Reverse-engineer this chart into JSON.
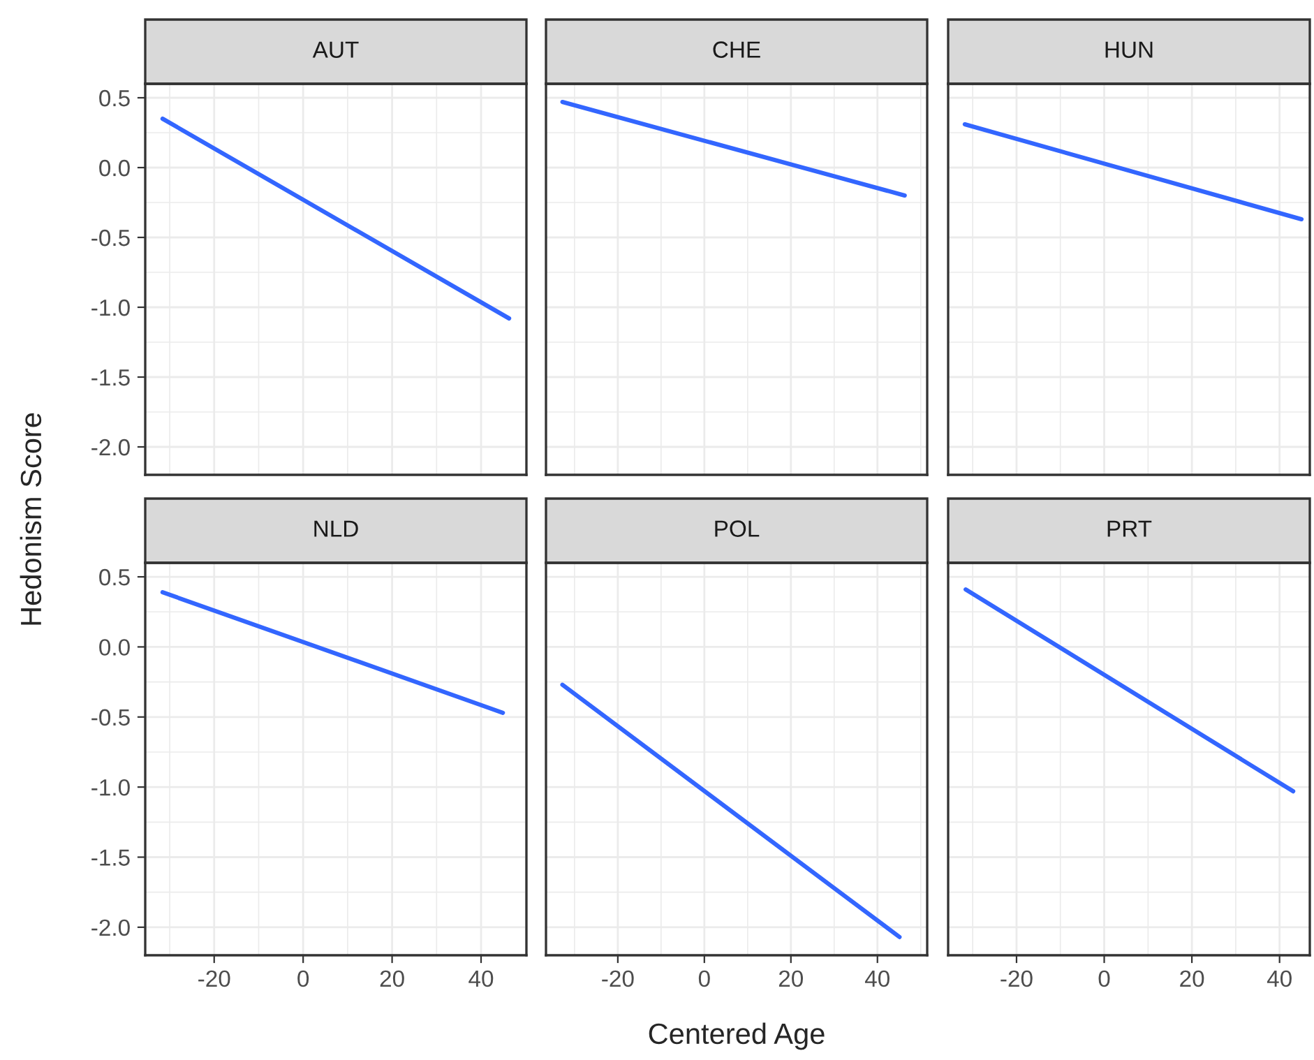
{
  "chart_data": [
    {
      "type": "line",
      "title": "AUT",
      "ylabel": "Hedonism Score",
      "xlim": [
        -35.5,
        50.2
      ],
      "ylim": [
        -2.2,
        0.6
      ],
      "xticks": [
        -20,
        0,
        20,
        40
      ],
      "yticks": [
        {
          "value": 0.5,
          "label": "0.5"
        },
        {
          "value": 0,
          "label": "0.0"
        },
        {
          "value": -0.5,
          "label": "-0.5"
        },
        {
          "value": -1,
          "label": "-1.0"
        },
        {
          "value": -1.5,
          "label": "-1.5"
        },
        {
          "value": -2,
          "label": "-2.0"
        }
      ],
      "grid": true,
      "tick_labels": "y",
      "series": [
        {
          "color": "#3366ff",
          "x": [
            -31.6,
            46.3
          ],
          "values": [
            0.35,
            -1.08
          ]
        }
      ]
    },
    {
      "type": "line",
      "title": "CHE",
      "xlim": [
        -36.6,
        51.5
      ],
      "ylim": [
        -2.2,
        0.6
      ],
      "xticks": [
        -20,
        0,
        20,
        40
      ],
      "yticks": [
        0.5,
        0,
        -0.5,
        -1,
        -1.5,
        -2
      ],
      "grid": true,
      "tick_labels": false,
      "series": [
        {
          "color": "#3366ff",
          "x": [
            -32.8,
            46.3
          ],
          "values": [
            0.47,
            -0.2
          ]
        }
      ]
    },
    {
      "type": "line",
      "title": "HUN",
      "xlim": [
        -35.6,
        46.9
      ],
      "ylim": [
        -2.2,
        0.6
      ],
      "xticks": [
        -20,
        0,
        20,
        40
      ],
      "yticks": [
        0.5,
        0,
        -0.5,
        -1,
        -1.5,
        -2
      ],
      "grid": true,
      "tick_labels": false,
      "series": [
        {
          "color": "#3366ff",
          "x": [
            -31.8,
            45.0
          ],
          "values": [
            0.31,
            -0.37
          ]
        }
      ]
    },
    {
      "type": "line",
      "title": "NLD",
      "xlim": [
        -35.5,
        50.2
      ],
      "ylim": [
        -2.2,
        0.6
      ],
      "xticks": [
        -20,
        0,
        20,
        40
      ],
      "yticks": [
        {
          "value": 0.5,
          "label": "0.5"
        },
        {
          "value": 0,
          "label": "0.0"
        },
        {
          "value": -0.5,
          "label": "-0.5"
        },
        {
          "value": -1,
          "label": "-1.0"
        },
        {
          "value": -1.5,
          "label": "-1.5"
        },
        {
          "value": -2,
          "label": "-2.0"
        }
      ],
      "grid": true,
      "series": [
        {
          "color": "#3366ff",
          "x": [
            -31.6,
            44.9
          ],
          "values": [
            0.39,
            -0.47
          ]
        }
      ]
    },
    {
      "type": "line",
      "title": "POL",
      "xlabel": "Centered Age",
      "xlim": [
        -36.6,
        51.5
      ],
      "ylim": [
        -2.2,
        0.6
      ],
      "xticks": [
        -20,
        0,
        20,
        40
      ],
      "yticks": [
        0.5,
        0,
        -0.5,
        -1,
        -1.5,
        -2
      ],
      "grid": true,
      "tick_labels": "x",
      "series": [
        {
          "color": "#3366ff",
          "x": [
            -32.8,
            45.1
          ],
          "values": [
            -0.27,
            -2.07
          ]
        }
      ]
    },
    {
      "type": "line",
      "title": "PRT",
      "xlim": [
        -35.6,
        46.9
      ],
      "ylim": [
        -2.2,
        0.6
      ],
      "xticks": [
        -20,
        0,
        20,
        40
      ],
      "yticks": [
        0.5,
        0,
        -0.5,
        -1,
        -1.5,
        -2
      ],
      "grid": true,
      "tick_labels": "x",
      "series": [
        {
          "color": "#3366ff",
          "x": [
            -31.6,
            43.1
          ],
          "values": [
            0.41,
            -1.03
          ]
        }
      ]
    }
  ]
}
